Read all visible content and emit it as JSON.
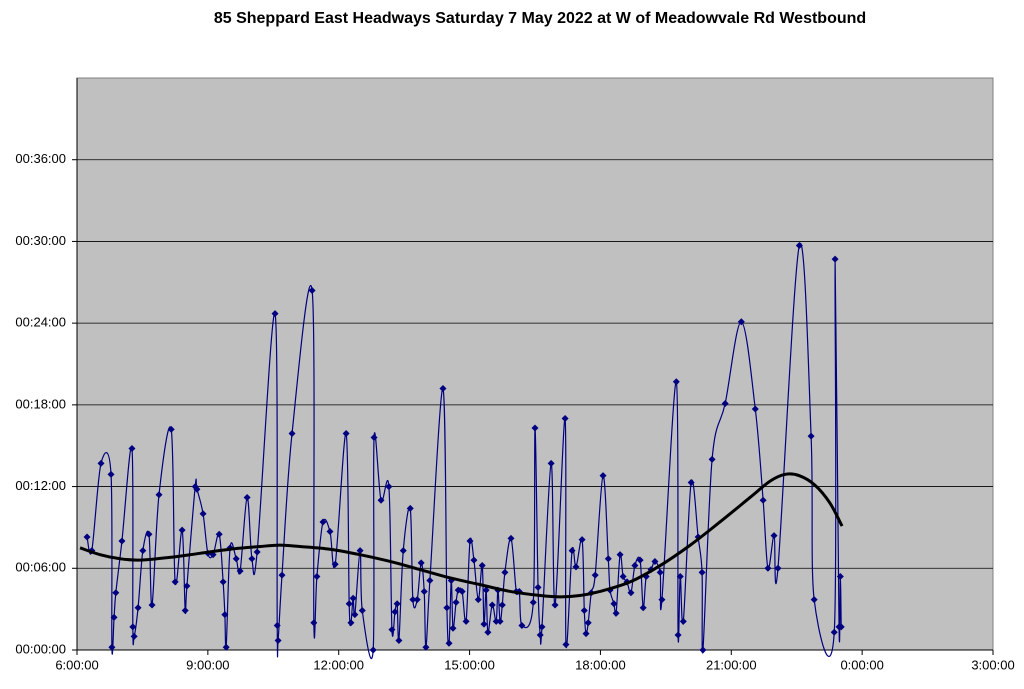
{
  "chart_data": {
    "type": "line",
    "title": "85 Sheppard East Headways Saturday 7 May 2022 at W of Meadowvale Rd Westbound",
    "xlim": [
      6,
      27
    ],
    "xticks": [
      {
        "value": 6,
        "label": "6:00:00"
      },
      {
        "value": 9,
        "label": "9:00:00"
      },
      {
        "value": 12,
        "label": "12:00:00"
      },
      {
        "value": 15,
        "label": "15:00:00"
      },
      {
        "value": 18,
        "label": "18:00:00"
      },
      {
        "value": 21,
        "label": "21:00:00"
      },
      {
        "value": 24,
        "label": "0:00:00"
      },
      {
        "value": 27,
        "label": "3:00:00"
      }
    ],
    "ylim": [
      0,
      42
    ],
    "yticks": [
      {
        "value": 0,
        "label": "00:00:00"
      },
      {
        "value": 6,
        "label": "00:06:00"
      },
      {
        "value": 12,
        "label": "00:12:00"
      },
      {
        "value": 18,
        "label": "00:18:00"
      },
      {
        "value": 24,
        "label": "00:24:00"
      },
      {
        "value": 30,
        "label": "00:30:00"
      },
      {
        "value": 36,
        "label": "00:36:00"
      }
    ],
    "grid": true,
    "background": "#c0c0c0",
    "series": [
      {
        "color": "#000080",
        "marker": "diamond",
        "smooth": true,
        "x": [
          6.23,
          6.34,
          6.55,
          6.78,
          6.8,
          6.85,
          6.89,
          7.03,
          7.26,
          7.28,
          7.31,
          7.4,
          7.51,
          7.65,
          7.72,
          7.88,
          8.16,
          8.25,
          8.41,
          8.48,
          8.52,
          8.71,
          8.75,
          8.89,
          9.0,
          9.12,
          9.26,
          9.35,
          9.39,
          9.42,
          9.51,
          9.65,
          9.74,
          9.9,
          10.01,
          10.13,
          10.54,
          10.59,
          10.61,
          10.7,
          10.93,
          11.39,
          11.43,
          11.5,
          11.64,
          11.8,
          11.92,
          12.17,
          12.24,
          12.28,
          12.33,
          12.37,
          12.49,
          12.54,
          12.79,
          12.81,
          12.97,
          13.15,
          13.22,
          13.29,
          13.34,
          13.38,
          13.48,
          13.64,
          13.7,
          13.8,
          13.89,
          13.96,
          14.0,
          14.09,
          14.39,
          14.48,
          14.53,
          14.58,
          14.62,
          14.69,
          14.74,
          14.83,
          14.92,
          15.01,
          15.1,
          15.2,
          15.29,
          15.33,
          15.38,
          15.42,
          15.52,
          15.61,
          15.65,
          15.7,
          15.75,
          15.81,
          15.95,
          16.07,
          16.14,
          16.2,
          16.46,
          16.5,
          16.57,
          16.62,
          16.66,
          16.87,
          16.96,
          17.19,
          17.21,
          17.35,
          17.44,
          17.58,
          17.63,
          17.67,
          17.72,
          17.79,
          17.88,
          18.06,
          18.18,
          18.22,
          18.31,
          18.36,
          18.45,
          18.52,
          18.61,
          18.7,
          18.79,
          18.91,
          18.98,
          19.05,
          19.16,
          19.25,
          19.37,
          19.41,
          19.74,
          19.78,
          19.83,
          19.9,
          20.08,
          20.24,
          20.33,
          20.35,
          20.56,
          20.86,
          21.23,
          21.55,
          21.73,
          21.84,
          21.98,
          22.07,
          22.56,
          22.83,
          22.9,
          23.36,
          23.38,
          23.47,
          23.5,
          23.52
        ],
        "values": [
          8.3,
          7.3,
          13.7,
          12.9,
          0.2,
          2.4,
          4.2,
          8.0,
          14.8,
          1.7,
          1.0,
          3.1,
          7.3,
          8.5,
          3.3,
          11.4,
          16.2,
          5.0,
          8.8,
          2.9,
          4.7,
          12.0,
          11.8,
          10.0,
          7.1,
          7.0,
          8.5,
          5.0,
          2.6,
          0.2,
          7.5,
          6.7,
          5.8,
          11.2,
          6.7,
          7.2,
          24.7,
          1.8,
          0.7,
          5.5,
          15.9,
          26.4,
          2.0,
          5.4,
          9.4,
          8.7,
          6.3,
          15.9,
          3.4,
          2.0,
          3.8,
          2.6,
          7.3,
          2.9,
          0.0,
          15.6,
          11.0,
          12.0,
          1.5,
          2.8,
          3.4,
          0.7,
          7.3,
          10.4,
          3.7,
          3.7,
          6.4,
          4.3,
          0.2,
          5.1,
          19.2,
          3.1,
          0.5,
          5.1,
          1.6,
          3.5,
          4.4,
          4.3,
          2.1,
          8.0,
          6.6,
          3.7,
          6.2,
          1.9,
          4.4,
          1.3,
          3.3,
          2.1,
          4.4,
          2.1,
          3.3,
          5.7,
          8.2,
          4.3,
          4.3,
          1.8,
          3.5,
          16.3,
          4.6,
          1.1,
          1.7,
          13.7,
          3.3,
          17.0,
          0.4,
          7.3,
          6.1,
          8.1,
          2.9,
          1.2,
          2.0,
          4.2,
          5.5,
          12.8,
          6.7,
          4.4,
          3.4,
          2.7,
          7.0,
          5.4,
          5.0,
          4.2,
          6.2,
          6.6,
          3.1,
          5.4,
          5.9,
          6.5,
          5.7,
          3.7,
          19.7,
          1.1,
          5.4,
          2.1,
          12.3,
          8.3,
          5.7,
          0.0,
          14.0,
          18.1,
          24.1,
          17.7,
          11.0,
          6.0,
          8.4,
          6.0,
          29.7,
          15.7,
          3.7,
          1.3,
          28.7,
          1.7,
          5.4,
          1.7
        ]
      },
      {
        "color": "#000000",
        "marker": "none",
        "smooth": true,
        "x": [
          6.07,
          6.53,
          6.99,
          7.44,
          8.13,
          8.82,
          9.51,
          10.2,
          10.65,
          11.11,
          11.8,
          12.49,
          13.18,
          13.87,
          14.55,
          15.24,
          15.93,
          16.62,
          17.08,
          17.53,
          17.99,
          18.68,
          19.37,
          20.06,
          20.74,
          21.43,
          21.89,
          22.24,
          22.56,
          22.92,
          23.26,
          23.54
        ],
        "values": [
          7.5,
          7.0,
          6.7,
          6.6,
          6.8,
          7.1,
          7.4,
          7.6,
          7.7,
          7.6,
          7.4,
          7.0,
          6.5,
          5.9,
          5.3,
          4.8,
          4.3,
          4.0,
          3.9,
          4.0,
          4.3,
          5.0,
          6.2,
          7.7,
          9.4,
          11.2,
          12.4,
          12.9,
          12.8,
          12.1,
          10.8,
          9.1
        ]
      }
    ]
  }
}
